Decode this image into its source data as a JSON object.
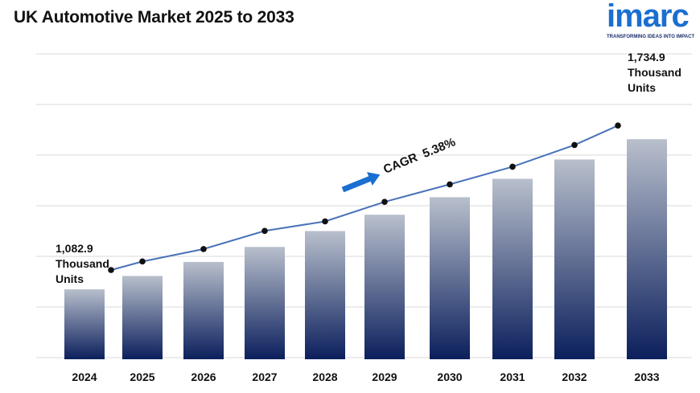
{
  "title": "UK Automotive Market 2025 to 2033",
  "logo": {
    "word": "imarc",
    "tagline": "TRANSFORMING IDEAS INTO IMPACT"
  },
  "colors": {
    "bar_top": "#b8bfcc",
    "bar_bottom": "#0b1f5c",
    "line": "#4a72b8",
    "marker": "#111111",
    "arrow": "#1a6fd0",
    "logo": "#1a6fd0"
  },
  "annotations": {
    "start": {
      "value": "1,082.9",
      "unit1": "Thousand",
      "unit2": "Units"
    },
    "end": {
      "value": "1,734.9",
      "unit1": "Thousand",
      "unit2": "Units"
    },
    "cagr": "CAGR  5.38%"
  },
  "chart_data": {
    "type": "bar",
    "title": "UK Automotive Market 2025 to 2033",
    "categories": [
      "2024",
      "2025",
      "2026",
      "2027",
      "2028",
      "2029",
      "2030",
      "2031",
      "2032",
      "2033"
    ],
    "series": [
      {
        "values": [
          1082.9,
          1141,
          1202,
          1267,
          1336,
          1407,
          1483,
          1563,
          1647,
          1734.9
        ]
      }
    ],
    "trend_line": true,
    "grid": true,
    "unit": "Thousand Units"
  }
}
